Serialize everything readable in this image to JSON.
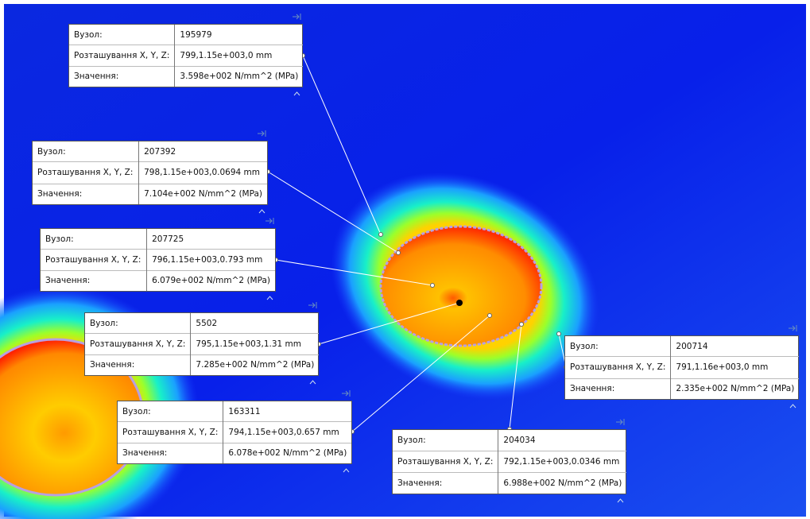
{
  "callouts": [
    {
      "rows": [
        [
          "Вузол:",
          "195979"
        ],
        [
          "Розташування X, Y, Z:",
          "799,1.15e+003,0 mm"
        ],
        [
          "Значення:",
          "3.598e+002 N/mm^2 (MPa)"
        ]
      ]
    },
    {
      "rows": [
        [
          "Вузол:",
          "207392"
        ],
        [
          "Розташування X, Y, Z:",
          "798,1.15e+003,0.0694 mm"
        ],
        [
          "Значення:",
          "7.104e+002 N/mm^2 (MPa)"
        ]
      ]
    },
    {
      "rows": [
        [
          "Вузол:",
          "207725"
        ],
        [
          "Розташування X, Y, Z:",
          "796,1.15e+003,0.793 mm"
        ],
        [
          "Значення:",
          "6.079e+002 N/mm^2 (MPa)"
        ]
      ]
    },
    {
      "rows": [
        [
          "Вузол:",
          "5502"
        ],
        [
          "Розташування X, Y, Z:",
          "795,1.15e+003,1.31 mm"
        ],
        [
          "Значення:",
          "7.285e+002 N/mm^2 (MPa)"
        ]
      ]
    },
    {
      "rows": [
        [
          "Вузол:",
          "163311"
        ],
        [
          "Розташування X, Y, Z:",
          "794,1.15e+003,0.657 mm"
        ],
        [
          "Значення:",
          "6.078e+002 N/mm^2 (MPa)"
        ]
      ]
    },
    {
      "rows": [
        [
          "Вузол:",
          "200714"
        ],
        [
          "Розташування X, Y, Z:",
          "791,1.16e+003,0 mm"
        ],
        [
          "Значення:",
          "2.335e+002 N/mm^2 (MPa)"
        ]
      ]
    },
    {
      "rows": [
        [
          "Вузол:",
          "204034"
        ],
        [
          "Розташування X, Y, Z:",
          "792,1.15e+003,0.0346 mm"
        ],
        [
          "Значення:",
          "6.988e+002 N/mm^2 (MPa)"
        ]
      ]
    }
  ]
}
